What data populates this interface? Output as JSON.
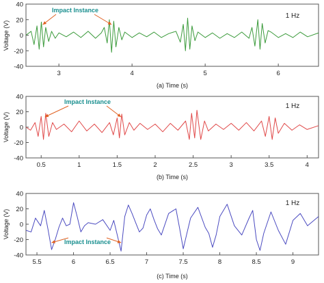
{
  "chart_data": [
    {
      "type": "line",
      "caption": "(a) Time (s)",
      "xlabel": "Time (s)",
      "ylabel": "Voltage (V)",
      "xlim": [
        2.55,
        6.55
      ],
      "ylim": [
        -40,
        40
      ],
      "xticks": [
        3,
        4,
        5,
        6
      ],
      "yticks": [
        -40,
        -20,
        0,
        20,
        40
      ],
      "frequency_label": "1 Hz",
      "color": "#3a9a3a",
      "annotation": {
        "text": "Impact Instance",
        "color": "#1a8f8f",
        "arrow_color": "#e06020",
        "targets": [
          2.78,
          3.72
        ]
      },
      "series": [
        {
          "x": [
            2.55,
            2.62,
            2.66,
            2.7,
            2.73,
            2.76,
            2.79,
            2.82,
            2.86,
            2.9,
            2.95,
            3.0,
            3.1,
            3.2,
            3.3,
            3.4,
            3.5,
            3.58,
            3.62,
            3.66,
            3.69,
            3.72,
            3.75,
            3.78,
            3.82,
            3.86,
            3.9,
            4.0,
            4.1,
            4.2,
            4.3,
            4.4,
            4.5,
            4.6,
            4.66,
            4.7,
            4.73,
            4.76,
            4.79,
            4.82,
            4.86,
            4.9,
            5.0,
            5.1,
            5.2,
            5.3,
            5.4,
            5.5,
            5.6,
            5.64,
            5.68,
            5.72,
            5.75,
            5.78,
            5.82,
            5.86,
            5.9,
            6.0,
            6.1,
            6.2,
            6.3,
            6.4,
            6.55
          ],
          "y": [
            0,
            5,
            -12,
            12,
            -18,
            17,
            -15,
            10,
            -8,
            5,
            -4,
            3,
            -2,
            4,
            -3,
            5,
            -4,
            3,
            10,
            -10,
            20,
            -22,
            18,
            -15,
            10,
            -6,
            4,
            -3,
            3,
            -2,
            4,
            -3,
            2,
            5,
            -9,
            14,
            -20,
            22,
            -18,
            12,
            -7,
            4,
            -3,
            3,
            -4,
            2,
            -3,
            4,
            -4,
            10,
            -14,
            20,
            -18,
            15,
            -10,
            6,
            4,
            -3,
            2,
            -3,
            4,
            -2,
            3
          ]
        }
      ]
    },
    {
      "type": "line",
      "caption": "(b) Time (s)",
      "xlabel": "Time (s)",
      "ylabel": "Voltage (V)",
      "xlim": [
        0.3,
        4.15
      ],
      "ylim": [
        -40,
        40
      ],
      "xticks": [
        0.5,
        1,
        1.5,
        2,
        2.5,
        3,
        3.5,
        4
      ],
      "yticks": [
        -40,
        -20,
        0,
        20,
        40
      ],
      "frequency_label": "1 Hz",
      "color": "#e04848",
      "annotation": {
        "text": "Impact Instance",
        "color": "#1a8f8f",
        "arrow_color": "#e06020",
        "targets": [
          0.55,
          1.55
        ]
      },
      "series": [
        {
          "x": [
            0.3,
            0.36,
            0.42,
            0.46,
            0.5,
            0.53,
            0.56,
            0.6,
            0.65,
            0.7,
            0.8,
            0.9,
            1.0,
            1.1,
            1.2,
            1.3,
            1.4,
            1.45,
            1.5,
            1.53,
            1.56,
            1.6,
            1.66,
            1.72,
            1.8,
            1.9,
            2.0,
            2.1,
            2.2,
            2.3,
            2.4,
            2.45,
            2.48,
            2.52,
            2.55,
            2.6,
            2.65,
            2.7,
            2.8,
            2.9,
            3.0,
            3.1,
            3.2,
            3.3,
            3.4,
            3.45,
            3.5,
            3.54,
            3.58,
            3.62,
            3.7,
            3.8,
            3.9,
            4.0,
            4.15
          ],
          "y": [
            0,
            -4,
            6,
            -12,
            14,
            -16,
            18,
            -12,
            6,
            -3,
            4,
            -6,
            8,
            -5,
            4,
            -7,
            6,
            -10,
            12,
            -14,
            17,
            -10,
            6,
            -4,
            5,
            -3,
            4,
            -6,
            5,
            -4,
            8,
            -16,
            18,
            -14,
            22,
            -16,
            8,
            -5,
            4,
            -3,
            5,
            -4,
            6,
            -5,
            8,
            -12,
            14,
            -16,
            12,
            -8,
            5,
            -4,
            3,
            -3,
            2
          ]
        }
      ]
    },
    {
      "type": "line",
      "caption": "(c) Time (s)",
      "xlabel": "Time (s)",
      "ylabel": "Voltage (V)",
      "xlim": [
        5.35,
        9.35
      ],
      "ylim": [
        -40,
        40
      ],
      "xticks": [
        5.5,
        6,
        6.5,
        7,
        7.5,
        8,
        8.5,
        9
      ],
      "yticks": [
        -40,
        -20,
        0,
        20,
        40
      ],
      "frequency_label": "1 Hz",
      "color": "#4a4ac0",
      "annotation": {
        "text": "Impact Instance",
        "color": "#1a8f8f",
        "arrow_color": "#e06020",
        "targets": [
          5.7,
          6.65
        ]
      },
      "series": [
        {
          "x": [
            5.35,
            5.42,
            5.48,
            5.55,
            5.6,
            5.65,
            5.7,
            5.75,
            5.8,
            5.85,
            5.9,
            5.95,
            6.0,
            6.05,
            6.1,
            6.15,
            6.2,
            6.3,
            6.4,
            6.5,
            6.55,
            6.6,
            6.65,
            6.7,
            6.75,
            6.8,
            6.85,
            6.9,
            6.95,
            7.0,
            7.05,
            7.1,
            7.15,
            7.2,
            7.3,
            7.4,
            7.45,
            7.5,
            7.55,
            7.6,
            7.7,
            7.8,
            7.85,
            7.9,
            7.95,
            8.0,
            8.1,
            8.2,
            8.3,
            8.4,
            8.45,
            8.5,
            8.55,
            8.6,
            8.7,
            8.8,
            8.9,
            9.0,
            9.1,
            9.2,
            9.35
          ],
          "y": [
            -8,
            -10,
            8,
            -2,
            18,
            -6,
            -33,
            -20,
            -4,
            8,
            -2,
            0,
            28,
            10,
            -10,
            -2,
            2,
            0,
            6,
            -8,
            5,
            -15,
            -35,
            10,
            25,
            14,
            2,
            -10,
            -5,
            12,
            20,
            6,
            -6,
            -14,
            14,
            20,
            -5,
            -32,
            -12,
            8,
            22,
            -4,
            -12,
            -30,
            -14,
            10,
            26,
            -2,
            -14,
            8,
            18,
            -20,
            -34,
            -12,
            16,
            -8,
            -26,
            5,
            14,
            -2,
            10
          ]
        }
      ]
    }
  ]
}
